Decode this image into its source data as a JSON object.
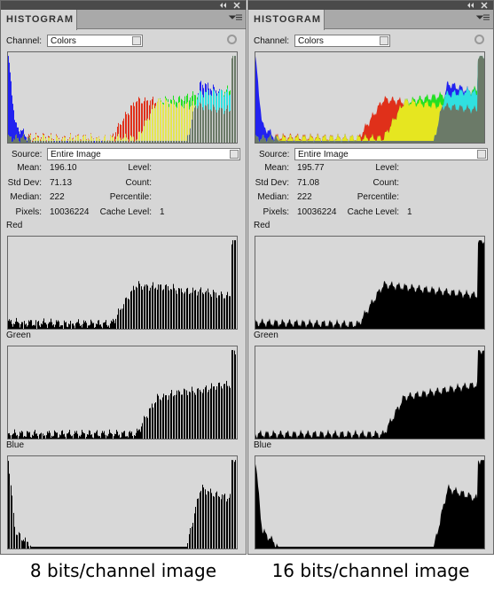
{
  "panels": [
    {
      "title": "HISTOGRAM",
      "channel_label": "Channel:",
      "channel": "Colors",
      "source_label": "Source:",
      "source": "Entire Image",
      "stats_left": [
        {
          "label": "Mean:",
          "value": "196.10"
        },
        {
          "label": "Std Dev:",
          "value": "71.13"
        },
        {
          "label": "Median:",
          "value": "222"
        },
        {
          "label": "Pixels:",
          "value": "10036224"
        }
      ],
      "stats_right": [
        "Level:",
        "Count:",
        "Percentile:",
        "Cache Level:"
      ],
      "cache_level": "1",
      "channels": [
        "Red",
        "Green",
        "Blue"
      ],
      "caption": "8 bits/channel image"
    },
    {
      "title": "HISTOGRAM",
      "channel_label": "Channel:",
      "channel": "Colors",
      "source_label": "Source:",
      "source": "Entire Image",
      "stats_left": [
        {
          "label": "Mean:",
          "value": "195.77"
        },
        {
          "label": "Std Dev:",
          "value": "71.08"
        },
        {
          "label": "Median:",
          "value": "222"
        },
        {
          "label": "Pixels:",
          "value": "10036224"
        }
      ],
      "stats_right": [
        "Level:",
        "Count:",
        "Percentile:",
        "Cache Level:"
      ],
      "cache_level": "1",
      "channels": [
        "Red",
        "Green",
        "Blue"
      ],
      "caption": "16 bits/channel image"
    }
  ]
}
